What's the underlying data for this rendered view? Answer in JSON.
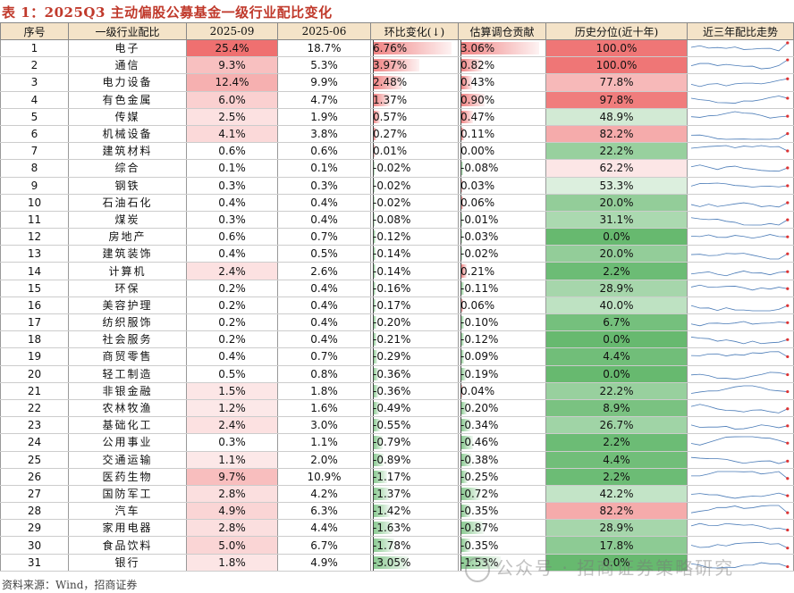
{
  "title": "表 1：2025Q3 主动偏股公募基金一级行业配比变化",
  "headers": [
    "序号",
    "一级行业配比",
    "2025-09",
    "2025-06",
    "环比变化(↓)",
    "估算调仓贡献",
    "历史分位(近十年)",
    "近三年配比走势"
  ],
  "rows": [
    {
      "no": "1",
      "ind": "电子",
      "q3": "25.4%",
      "q2": "18.7%",
      "chg": "6.76%",
      "contrib": "3.06%",
      "pct": "100.0%",
      "q3v": 25.4,
      "chgv": 6.76,
      "contribv": 3.06,
      "pctv": 100.0
    },
    {
      "no": "2",
      "ind": "通信",
      "q3": "9.3%",
      "q2": "5.3%",
      "chg": "3.97%",
      "contrib": "0.82%",
      "pct": "100.0%",
      "q3v": 9.3,
      "chgv": 3.97,
      "contribv": 0.82,
      "pctv": 100.0
    },
    {
      "no": "3",
      "ind": "电力设备",
      "q3": "12.4%",
      "q2": "9.9%",
      "chg": "2.48%",
      "contrib": "0.43%",
      "pct": "77.8%",
      "q3v": 12.4,
      "chgv": 2.48,
      "contribv": 0.43,
      "pctv": 77.8
    },
    {
      "no": "4",
      "ind": "有色金属",
      "q3": "6.0%",
      "q2": "4.7%",
      "chg": "1.37%",
      "contrib": "0.90%",
      "pct": "97.8%",
      "q3v": 6.0,
      "chgv": 1.37,
      "contribv": 0.9,
      "pctv": 97.8
    },
    {
      "no": "5",
      "ind": "传媒",
      "q3": "2.5%",
      "q2": "1.9%",
      "chg": "0.57%",
      "contrib": "0.47%",
      "pct": "48.9%",
      "q3v": 2.5,
      "chgv": 0.57,
      "contribv": 0.47,
      "pctv": 48.9
    },
    {
      "no": "6",
      "ind": "机械设备",
      "q3": "4.1%",
      "q2": "3.8%",
      "chg": "0.27%",
      "contrib": "0.11%",
      "pct": "82.2%",
      "q3v": 4.1,
      "chgv": 0.27,
      "contribv": 0.11,
      "pctv": 82.2
    },
    {
      "no": "7",
      "ind": "建筑材料",
      "q3": "0.6%",
      "q2": "0.6%",
      "chg": "0.01%",
      "contrib": "0.00%",
      "pct": "22.2%",
      "q3v": 0.6,
      "chgv": 0.01,
      "contribv": 0.0,
      "pctv": 22.2
    },
    {
      "no": "8",
      "ind": "综合",
      "q3": "0.1%",
      "q2": "0.1%",
      "chg": "-0.02%",
      "contrib": "-0.08%",
      "pct": "62.2%",
      "q3v": 0.1,
      "chgv": -0.02,
      "contribv": -0.08,
      "pctv": 62.2
    },
    {
      "no": "9",
      "ind": "钢铁",
      "q3": "0.3%",
      "q2": "0.3%",
      "chg": "-0.02%",
      "contrib": "0.03%",
      "pct": "53.3%",
      "q3v": 0.3,
      "chgv": -0.02,
      "contribv": 0.03,
      "pctv": 53.3
    },
    {
      "no": "10",
      "ind": "石油石化",
      "q3": "0.4%",
      "q2": "0.4%",
      "chg": "-0.02%",
      "contrib": "0.06%",
      "pct": "20.0%",
      "q3v": 0.4,
      "chgv": -0.02,
      "contribv": 0.06,
      "pctv": 20.0
    },
    {
      "no": "11",
      "ind": "煤炭",
      "q3": "0.3%",
      "q2": "0.4%",
      "chg": "-0.08%",
      "contrib": "-0.01%",
      "pct": "31.1%",
      "q3v": 0.3,
      "chgv": -0.08,
      "contribv": -0.01,
      "pctv": 31.1
    },
    {
      "no": "12",
      "ind": "房地产",
      "q3": "0.6%",
      "q2": "0.7%",
      "chg": "-0.12%",
      "contrib": "-0.03%",
      "pct": "0.0%",
      "q3v": 0.6,
      "chgv": -0.12,
      "contribv": -0.03,
      "pctv": 0.0
    },
    {
      "no": "13",
      "ind": "建筑装饰",
      "q3": "0.4%",
      "q2": "0.5%",
      "chg": "-0.14%",
      "contrib": "-0.02%",
      "pct": "20.0%",
      "q3v": 0.4,
      "chgv": -0.14,
      "contribv": -0.02,
      "pctv": 20.0
    },
    {
      "no": "14",
      "ind": "计算机",
      "q3": "2.4%",
      "q2": "2.6%",
      "chg": "-0.14%",
      "contrib": "0.21%",
      "pct": "2.2%",
      "q3v": 2.4,
      "chgv": -0.14,
      "contribv": 0.21,
      "pctv": 2.2
    },
    {
      "no": "15",
      "ind": "环保",
      "q3": "0.2%",
      "q2": "0.4%",
      "chg": "-0.16%",
      "contrib": "-0.11%",
      "pct": "28.9%",
      "q3v": 0.2,
      "chgv": -0.16,
      "contribv": -0.11,
      "pctv": 28.9
    },
    {
      "no": "16",
      "ind": "美容护理",
      "q3": "0.2%",
      "q2": "0.4%",
      "chg": "-0.17%",
      "contrib": "0.06%",
      "pct": "40.0%",
      "q3v": 0.2,
      "chgv": -0.17,
      "contribv": 0.06,
      "pctv": 40.0
    },
    {
      "no": "17",
      "ind": "纺织服饰",
      "q3": "0.2%",
      "q2": "0.4%",
      "chg": "-0.20%",
      "contrib": "-0.10%",
      "pct": "6.7%",
      "q3v": 0.2,
      "chgv": -0.2,
      "contribv": -0.1,
      "pctv": 6.7
    },
    {
      "no": "18",
      "ind": "社会服务",
      "q3": "0.2%",
      "q2": "0.4%",
      "chg": "-0.21%",
      "contrib": "-0.12%",
      "pct": "0.0%",
      "q3v": 0.2,
      "chgv": -0.21,
      "contribv": -0.12,
      "pctv": 0.0
    },
    {
      "no": "19",
      "ind": "商贸零售",
      "q3": "0.4%",
      "q2": "0.7%",
      "chg": "-0.29%",
      "contrib": "-0.09%",
      "pct": "4.4%",
      "q3v": 0.4,
      "chgv": -0.29,
      "contribv": -0.09,
      "pctv": 4.4
    },
    {
      "no": "20",
      "ind": "轻工制造",
      "q3": "0.5%",
      "q2": "0.8%",
      "chg": "-0.36%",
      "contrib": "-0.19%",
      "pct": "0.0%",
      "q3v": 0.5,
      "chgv": -0.36,
      "contribv": -0.19,
      "pctv": 0.0
    },
    {
      "no": "21",
      "ind": "非银金融",
      "q3": "1.5%",
      "q2": "1.8%",
      "chg": "-0.36%",
      "contrib": "0.04%",
      "pct": "22.2%",
      "q3v": 1.5,
      "chgv": -0.36,
      "contribv": 0.04,
      "pctv": 22.2
    },
    {
      "no": "22",
      "ind": "农林牧渔",
      "q3": "1.2%",
      "q2": "1.6%",
      "chg": "-0.49%",
      "contrib": "-0.20%",
      "pct": "8.9%",
      "q3v": 1.2,
      "chgv": -0.49,
      "contribv": -0.2,
      "pctv": 8.9
    },
    {
      "no": "23",
      "ind": "基础化工",
      "q3": "2.4%",
      "q2": "3.0%",
      "chg": "-0.55%",
      "contrib": "-0.34%",
      "pct": "26.7%",
      "q3v": 2.4,
      "chgv": -0.55,
      "contribv": -0.34,
      "pctv": 26.7
    },
    {
      "no": "24",
      "ind": "公用事业",
      "q3": "0.3%",
      "q2": "1.1%",
      "chg": "-0.79%",
      "contrib": "-0.46%",
      "pct": "2.2%",
      "q3v": 0.3,
      "chgv": -0.79,
      "contribv": -0.46,
      "pctv": 2.2
    },
    {
      "no": "25",
      "ind": "交通运输",
      "q3": "1.1%",
      "q2": "2.0%",
      "chg": "-0.89%",
      "contrib": "-0.38%",
      "pct": "4.4%",
      "q3v": 1.1,
      "chgv": -0.89,
      "contribv": -0.38,
      "pctv": 4.4
    },
    {
      "no": "26",
      "ind": "医药生物",
      "q3": "9.7%",
      "q2": "10.9%",
      "chg": "-1.17%",
      "contrib": "-0.25%",
      "pct": "2.2%",
      "q3v": 9.7,
      "chgv": -1.17,
      "contribv": -0.25,
      "pctv": 2.2
    },
    {
      "no": "27",
      "ind": "国防军工",
      "q3": "2.8%",
      "q2": "4.2%",
      "chg": "-1.37%",
      "contrib": "-0.72%",
      "pct": "42.2%",
      "q3v": 2.8,
      "chgv": -1.37,
      "contribv": -0.72,
      "pctv": 42.2
    },
    {
      "no": "28",
      "ind": "汽车",
      "q3": "4.9%",
      "q2": "6.3%",
      "chg": "-1.42%",
      "contrib": "-0.35%",
      "pct": "82.2%",
      "q3v": 4.9,
      "chgv": -1.42,
      "contribv": -0.35,
      "pctv": 82.2
    },
    {
      "no": "29",
      "ind": "家用电器",
      "q3": "2.8%",
      "q2": "4.4%",
      "chg": "-1.63%",
      "contrib": "-0.87%",
      "pct": "28.9%",
      "q3v": 2.8,
      "chgv": -1.63,
      "contribv": -0.87,
      "pctv": 28.9
    },
    {
      "no": "30",
      "ind": "食品饮料",
      "q3": "5.0%",
      "q2": "6.7%",
      "chg": "-1.78%",
      "contrib": "-0.35%",
      "pct": "17.8%",
      "q3v": 5.0,
      "chgv": -1.78,
      "contribv": -0.35,
      "pctv": 17.8
    },
    {
      "no": "31",
      "ind": "银行",
      "q3": "1.8%",
      "q2": "4.9%",
      "chg": "-3.05%",
      "contrib": "-1.53%",
      "pct": "0.0%",
      "q3v": 1.8,
      "chgv": -3.05,
      "contribv": -1.53,
      "pctv": 0.0
    }
  ],
  "footer": "资料来源：Wind，招商证券",
  "watermark": "公众号 · 招商证券策略研究",
  "colors": {
    "red": "#f08080",
    "green": "#6abf69",
    "header_bg": "#f4e3c8",
    "title": "#c0392b"
  }
}
